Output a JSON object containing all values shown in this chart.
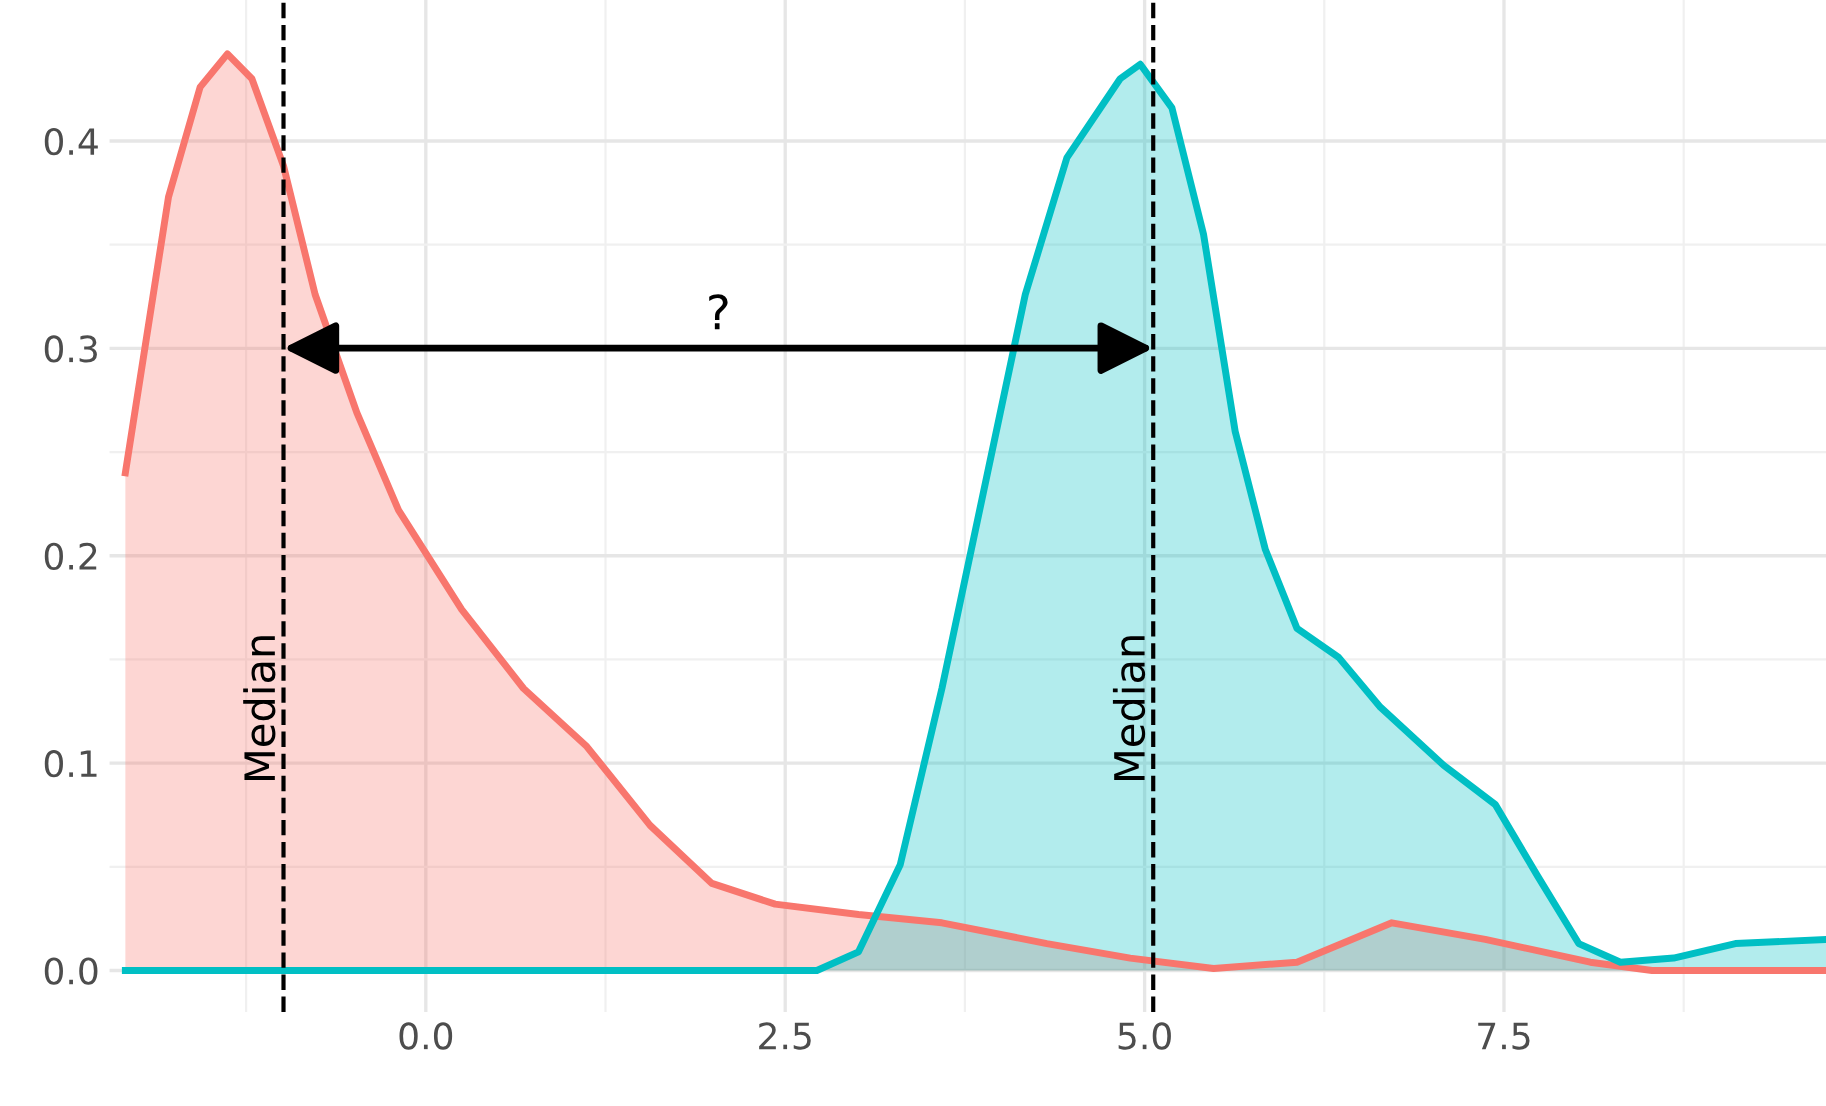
{
  "chart_data": {
    "type": "area",
    "series": [
      {
        "color": "#f8766d",
        "x": [
          -2.09,
          -1.79,
          -1.57,
          -1.38,
          -1.21,
          -0.99,
          -0.77,
          -0.48,
          -0.19,
          0.25,
          0.68,
          1.12,
          1.56,
          1.99,
          2.43,
          3.01,
          3.59,
          4.32,
          4.9,
          5.48,
          6.06,
          6.72,
          7.37,
          8.1,
          8.53,
          9.74
        ],
        "values": [
          0.24,
          0.373,
          0.426,
          0.442,
          0.43,
          0.388,
          0.326,
          0.269,
          0.222,
          0.174,
          0.136,
          0.108,
          0.07,
          0.042,
          0.032,
          0.027,
          0.023,
          0.013,
          0.006,
          0.001,
          0.004,
          0.023,
          0.015,
          0.004,
          0.0,
          0.0
        ]
      },
      {
        "color": "#00bfc4",
        "x": [
          -2.09,
          2.72,
          3.01,
          3.3,
          3.59,
          3.88,
          4.17,
          4.46,
          4.83,
          4.97,
          5.19,
          5.41,
          5.63,
          5.84,
          6.06,
          6.35,
          6.64,
          7.08,
          7.44,
          7.73,
          8.02,
          8.31,
          8.68,
          9.11,
          9.74
        ],
        "values": [
          0.0,
          0.0,
          0.009,
          0.051,
          0.136,
          0.231,
          0.326,
          0.392,
          0.43,
          0.437,
          0.416,
          0.355,
          0.26,
          0.203,
          0.165,
          0.151,
          0.127,
          0.099,
          0.08,
          0.046,
          0.013,
          0.004,
          0.006,
          0.013,
          0.015
        ]
      }
    ],
    "xlim": [
      -2.2,
      9.74
    ],
    "ylim": [
      -0.02,
      0.468
    ],
    "xticks": [
      {
        "value": 0,
        "label": "0.0"
      },
      2.5,
      {
        "value": 5,
        "label": "5.0"
      },
      7.5
    ],
    "yticks": [
      {
        "value": 0,
        "label": "0.0"
      },
      0.1,
      0.2,
      0.3,
      0.4
    ],
    "grid": true,
    "ref_lines": [
      {
        "axis": "x",
        "value": -0.99,
        "label": "Median",
        "color": "#000000",
        "line_style": "dashed"
      },
      {
        "axis": "x",
        "value": 5.06,
        "label": "Median",
        "color": "#000000",
        "line_style": "dashed"
      }
    ],
    "annotations": [
      "?"
    ]
  }
}
